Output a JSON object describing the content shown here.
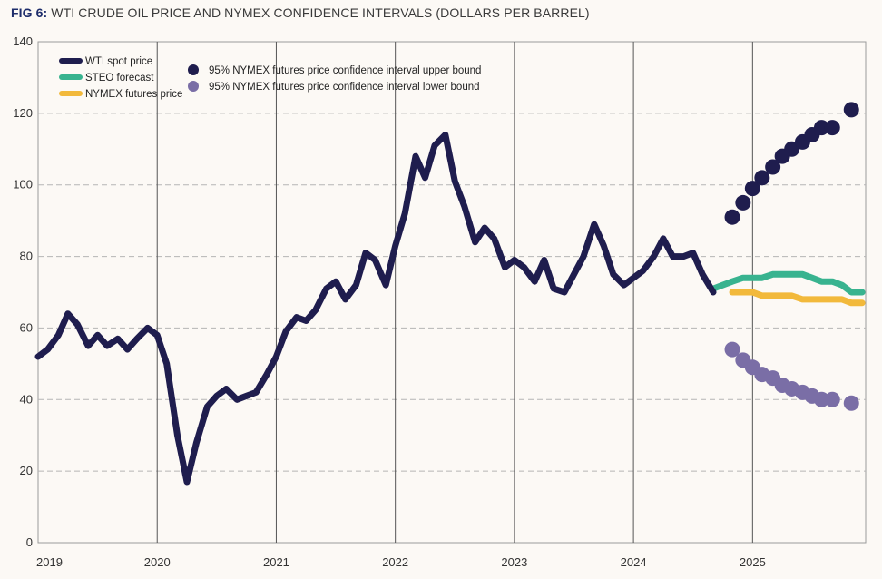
{
  "chart_data": {
    "type": "line",
    "title_prefix": "FIG 6:",
    "title": "WTI CRUDE OIL PRICE AND NYMEX CONFIDENCE INTERVALS (DOLLARS PER BARREL)",
    "xlabel": "",
    "ylabel": "",
    "ylim": [
      0,
      140
    ],
    "xlim": [
      2019.0,
      2025.95
    ],
    "yticks": [
      0,
      20,
      40,
      60,
      80,
      100,
      120,
      140
    ],
    "xticks": [
      {
        "label": "2019",
        "value": 2019.0
      },
      {
        "label": "2020",
        "value": 2020.0
      },
      {
        "label": "2021",
        "value": 2021.0
      },
      {
        "label": "2022",
        "value": 2022.0
      },
      {
        "label": "2023",
        "value": 2023.0
      },
      {
        "label": "2024",
        "value": 2024.0
      },
      {
        "label": "2025",
        "value": 2025.0
      }
    ],
    "grid": "dashed horizontal",
    "legend_position": "top-left",
    "series": [
      {
        "name": "WTI spot price",
        "kind": "line",
        "color": "#1f1d4e",
        "x": [
          2019.0,
          2019.08,
          2019.17,
          2019.25,
          2019.33,
          2019.42,
          2019.5,
          2019.58,
          2019.67,
          2019.75,
          2019.83,
          2019.92,
          2020.0,
          2020.08,
          2020.17,
          2020.25,
          2020.33,
          2020.42,
          2020.5,
          2020.58,
          2020.67,
          2020.75,
          2020.83,
          2020.92,
          2021.0,
          2021.08,
          2021.17,
          2021.25,
          2021.33,
          2021.42,
          2021.5,
          2021.58,
          2021.67,
          2021.75,
          2021.83,
          2021.92,
          2022.0,
          2022.08,
          2022.17,
          2022.25,
          2022.33,
          2022.42,
          2022.5,
          2022.58,
          2022.67,
          2022.75,
          2022.83,
          2022.92,
          2023.0,
          2023.08,
          2023.17,
          2023.25,
          2023.33,
          2023.42,
          2023.5,
          2023.58,
          2023.67,
          2023.75,
          2023.83,
          2023.92,
          2024.0,
          2024.08,
          2024.17,
          2024.25,
          2024.33,
          2024.42,
          2024.5,
          2024.58,
          2024.67
        ],
        "values": [
          52,
          54,
          58,
          64,
          61,
          55,
          58,
          55,
          57,
          54,
          57,
          60,
          58,
          50,
          30,
          17,
          28,
          38,
          41,
          43,
          40,
          41,
          42,
          47,
          52,
          59,
          63,
          62,
          65,
          71,
          73,
          68,
          72,
          81,
          79,
          72,
          83,
          92,
          108,
          102,
          111,
          114,
          101,
          94,
          84,
          88,
          85,
          77,
          79,
          77,
          73,
          79,
          71,
          70,
          75,
          80,
          89,
          83,
          75,
          72,
          74,
          76,
          80,
          85,
          80,
          80,
          81,
          75,
          70
        ]
      },
      {
        "name": "STEO forecast",
        "kind": "line",
        "color": "#38b38f",
        "x": [
          2024.67,
          2024.75,
          2024.83,
          2024.92,
          2025.0,
          2025.08,
          2025.17,
          2025.25,
          2025.33,
          2025.42,
          2025.5,
          2025.58,
          2025.67,
          2025.75,
          2025.83,
          2025.92
        ],
        "values": [
          71,
          72,
          73,
          74,
          74,
          74,
          75,
          75,
          75,
          75,
          74,
          73,
          73,
          72,
          70,
          70
        ]
      },
      {
        "name": "NYMEX futures price",
        "kind": "line",
        "color": "#f2b93b",
        "x": [
          2024.83,
          2024.92,
          2025.0,
          2025.08,
          2025.17,
          2025.25,
          2025.33,
          2025.42,
          2025.5,
          2025.58,
          2025.67,
          2025.75,
          2025.83,
          2025.92
        ],
        "values": [
          70,
          70,
          70,
          69,
          69,
          69,
          69,
          68,
          68,
          68,
          68,
          68,
          67,
          67
        ]
      },
      {
        "name": "95% NYMEX futures price confidence interval upper bound",
        "kind": "scatter",
        "color": "#1f1d4e",
        "x": [
          2024.83,
          2024.92,
          2025.0,
          2025.08,
          2025.17,
          2025.25,
          2025.33,
          2025.42,
          2025.5,
          2025.58,
          2025.67,
          2025.83
        ],
        "values": [
          91,
          95,
          99,
          102,
          105,
          108,
          110,
          112,
          114,
          116,
          116,
          121
        ]
      },
      {
        "name": "95% NYMEX futures price confidence interval lower bound",
        "kind": "scatter",
        "color": "#7a6ea6",
        "x": [
          2024.83,
          2024.92,
          2025.0,
          2025.08,
          2025.17,
          2025.25,
          2025.33,
          2025.42,
          2025.5,
          2025.58,
          2025.67,
          2025.83
        ],
        "values": [
          54,
          51,
          49,
          47,
          46,
          44,
          43,
          42,
          41,
          40,
          40,
          39
        ]
      }
    ]
  }
}
